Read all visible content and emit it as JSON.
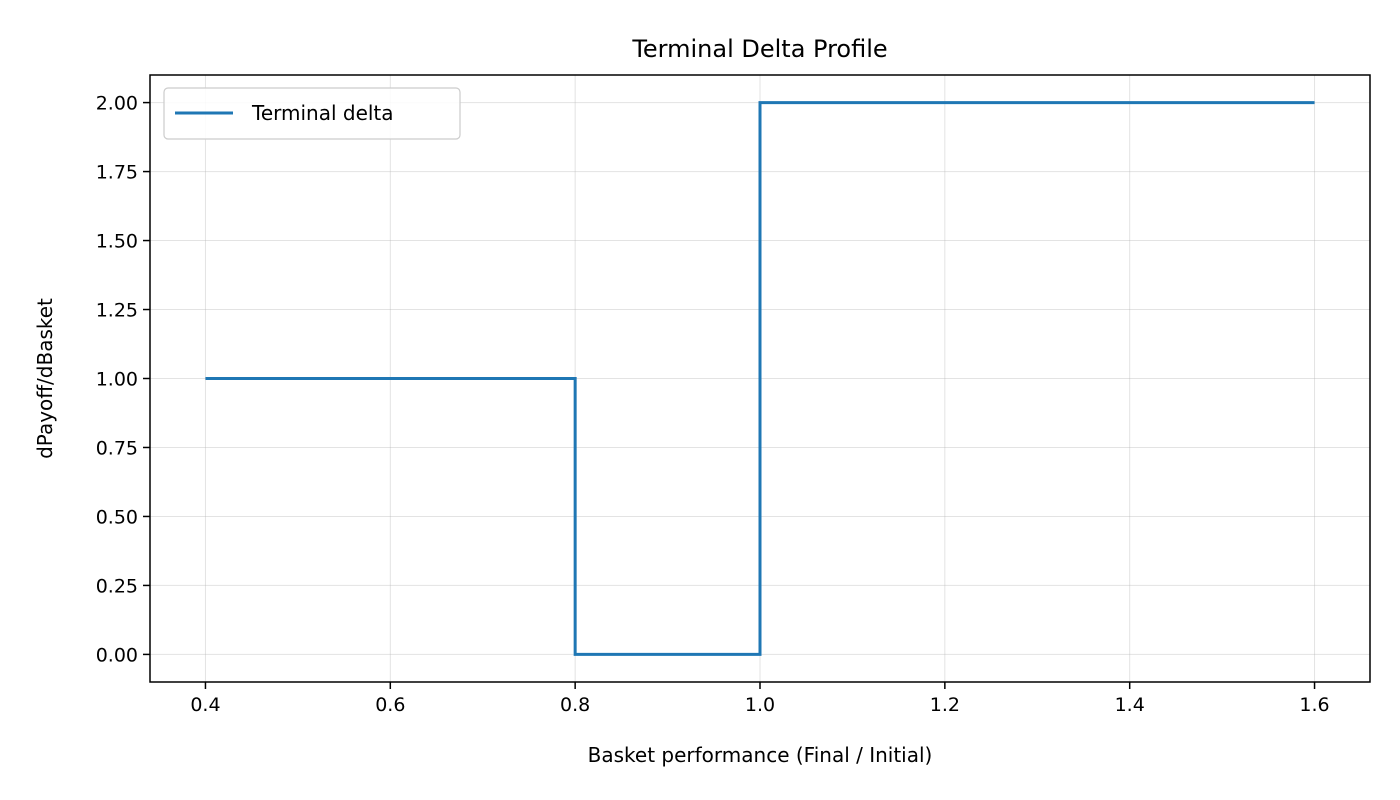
{
  "chart_data": {
    "type": "line",
    "step": true,
    "title": "Terminal Delta Profile",
    "xlabel": "Basket performance (Final / Initial)",
    "ylabel": "dPayoff/dBasket",
    "xlim": [
      0.34,
      1.66
    ],
    "ylim": [
      -0.1,
      2.1
    ],
    "xticks": [
      0.4,
      0.6,
      0.8,
      1.0,
      1.2,
      1.4,
      1.6
    ],
    "xtick_labels": [
      "0.4",
      "0.6",
      "0.8",
      "1.0",
      "1.2",
      "1.4",
      "1.6"
    ],
    "yticks": [
      0.0,
      0.25,
      0.5,
      0.75,
      1.0,
      1.25,
      1.5,
      1.75,
      2.0
    ],
    "ytick_labels": [
      "0.00",
      "0.25",
      "0.50",
      "0.75",
      "1.00",
      "1.25",
      "1.50",
      "1.75",
      "2.00"
    ],
    "grid": true,
    "legend_position": "top-left",
    "series": [
      {
        "name": "Terminal delta",
        "color": "#1f77b4",
        "x": [
          0.4,
          0.8,
          0.8,
          1.0,
          1.0,
          1.6
        ],
        "y": [
          1.0,
          1.0,
          0.0,
          0.0,
          2.0,
          2.0
        ]
      }
    ]
  }
}
